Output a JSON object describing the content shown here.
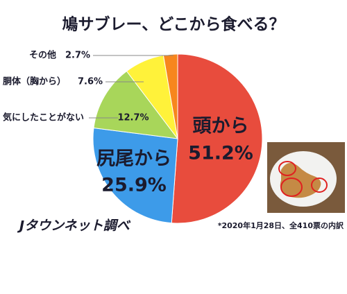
{
  "chart_data": {
    "type": "pie",
    "title": "鳩サブレー、どこから食べる？",
    "categories": [
      "頭から",
      "尻尾から",
      "気にしたことがない",
      "胴体（胸から）",
      "その他"
    ],
    "values": [
      51.2,
      25.9,
      12.7,
      7.6,
      2.7
    ],
    "value_labels": [
      "51.2%",
      "25.9%",
      "12.7%",
      "7.6%",
      "2.7%"
    ],
    "colors": [
      "#e84c3d",
      "#3d9be9",
      "#a8d65a",
      "#fff23a",
      "#f7861d"
    ],
    "source": "Jタウンネット調べ",
    "note": "*2020年1月28日、全410票の内訳"
  }
}
